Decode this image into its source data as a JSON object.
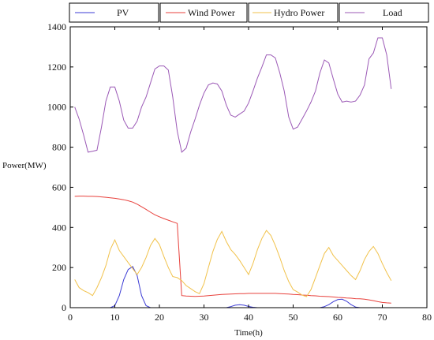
{
  "chart_data": {
    "type": "line",
    "xlabel": "Time(h)",
    "ylabel": "Power(MW)",
    "xlim": [
      0,
      80
    ],
    "ylim": [
      0,
      1400
    ],
    "xticks": [
      0,
      10,
      20,
      30,
      40,
      50,
      60,
      70,
      80
    ],
    "yticks": [
      0,
      200,
      400,
      600,
      800,
      1000,
      1200,
      1400
    ],
    "grid": false,
    "legend_placement": "top, outside plot",
    "series": [
      {
        "name": "PV",
        "color": "#3b3bd4",
        "x": [
          1,
          2,
          3,
          4,
          5,
          6,
          7,
          8,
          9,
          10,
          11,
          12,
          13,
          14,
          15,
          16,
          17,
          18,
          19,
          20,
          21,
          22,
          23,
          24,
          25,
          26,
          27,
          28,
          29,
          30,
          31,
          32,
          33,
          34,
          35,
          36,
          37,
          38,
          39,
          40,
          41,
          42,
          43,
          44,
          45,
          46,
          47,
          48,
          49,
          50,
          51,
          52,
          53,
          54,
          55,
          56,
          57,
          58,
          59,
          60,
          61,
          62,
          63,
          64,
          65,
          66,
          67,
          68,
          69,
          70,
          71,
          72
        ],
        "values": [
          0,
          0,
          0,
          0,
          0,
          0,
          0,
          0,
          0,
          10,
          60,
          140,
          190,
          205,
          160,
          60,
          10,
          0,
          0,
          0,
          0,
          0,
          0,
          0,
          0,
          0,
          0,
          0,
          0,
          0,
          0,
          0,
          0,
          0,
          0,
          5,
          12,
          15,
          12,
          6,
          2,
          0,
          0,
          0,
          0,
          0,
          0,
          0,
          0,
          0,
          0,
          0,
          0,
          0,
          0,
          0,
          5,
          15,
          30,
          40,
          42,
          32,
          15,
          3,
          0,
          0,
          0,
          0,
          0,
          0,
          0,
          0
        ]
      },
      {
        "name": "Wind Power",
        "color": "#e8413c",
        "x": [
          1,
          2,
          3,
          4,
          5,
          6,
          7,
          8,
          9,
          10,
          11,
          12,
          13,
          14,
          15,
          16,
          17,
          18,
          19,
          20,
          21,
          22,
          23,
          24,
          25,
          26,
          27,
          28,
          29,
          30,
          31,
          32,
          33,
          34,
          35,
          36,
          37,
          38,
          39,
          40,
          41,
          42,
          43,
          44,
          45,
          46,
          47,
          48,
          49,
          50,
          51,
          52,
          53,
          54,
          55,
          56,
          57,
          58,
          59,
          60,
          61,
          62,
          63,
          64,
          65,
          66,
          67,
          68,
          69,
          70,
          71,
          72
        ],
        "values": [
          555,
          556,
          556,
          555,
          555,
          554,
          552,
          550,
          548,
          545,
          542,
          538,
          533,
          526,
          516,
          503,
          490,
          476,
          463,
          453,
          444,
          436,
          428,
          420,
          60,
          58,
          57,
          56,
          57,
          58,
          60,
          62,
          64,
          66,
          67,
          68,
          69,
          70,
          70,
          71,
          71,
          71,
          71,
          71,
          71,
          71,
          70,
          69,
          68,
          66,
          65,
          63,
          62,
          60,
          59,
          57,
          56,
          55,
          53,
          51,
          50,
          48,
          47,
          45,
          44,
          42,
          39,
          35,
          30,
          26,
          24,
          23
        ]
      },
      {
        "name": "Hydro Power",
        "color": "#f1c24b",
        "x": [
          1,
          2,
          3,
          4,
          5,
          6,
          7,
          8,
          9,
          10,
          11,
          12,
          13,
          14,
          15,
          16,
          17,
          18,
          19,
          20,
          21,
          22,
          23,
          24,
          25,
          26,
          27,
          28,
          29,
          30,
          31,
          32,
          33,
          34,
          35,
          36,
          37,
          38,
          39,
          40,
          41,
          42,
          43,
          44,
          45,
          46,
          47,
          48,
          49,
          50,
          51,
          52,
          53,
          54,
          55,
          56,
          57,
          58,
          59,
          60,
          61,
          62,
          63,
          64,
          65,
          66,
          67,
          68,
          69,
          70,
          71,
          72
        ],
        "values": [
          140,
          100,
          85,
          75,
          60,
          100,
          150,
          210,
          290,
          338,
          285,
          255,
          225,
          195,
          165,
          200,
          250,
          310,
          345,
          315,
          255,
          200,
          155,
          150,
          135,
          110,
          95,
          80,
          70,
          120,
          200,
          280,
          340,
          380,
          330,
          290,
          265,
          235,
          200,
          165,
          220,
          290,
          345,
          385,
          360,
          310,
          250,
          185,
          130,
          90,
          78,
          63,
          55,
          90,
          150,
          210,
          270,
          300,
          260,
          235,
          210,
          185,
          160,
          140,
          185,
          240,
          280,
          305,
          270,
          220,
          175,
          135
        ]
      },
      {
        "name": "Load",
        "color": "#9b59b6",
        "x": [
          1,
          2,
          3,
          4,
          5,
          6,
          7,
          8,
          9,
          10,
          11,
          12,
          13,
          14,
          15,
          16,
          17,
          18,
          19,
          20,
          21,
          22,
          23,
          24,
          25,
          26,
          27,
          28,
          29,
          30,
          31,
          32,
          33,
          34,
          35,
          36,
          37,
          38,
          39,
          40,
          41,
          42,
          43,
          44,
          45,
          46,
          47,
          48,
          49,
          50,
          51,
          52,
          53,
          54,
          55,
          56,
          57,
          58,
          59,
          60,
          61,
          62,
          63,
          64,
          65,
          66,
          67,
          68,
          69,
          70,
          71,
          72
        ],
        "values": [
          1000,
          940,
          860,
          775,
          780,
          785,
          900,
          1030,
          1100,
          1100,
          1030,
          935,
          895,
          895,
          930,
          1000,
          1050,
          1120,
          1190,
          1205,
          1205,
          1185,
          1050,
          880,
          775,
          795,
          875,
          940,
          1010,
          1070,
          1110,
          1120,
          1115,
          1080,
          1010,
          960,
          950,
          965,
          980,
          1020,
          1080,
          1145,
          1200,
          1260,
          1260,
          1245,
          1170,
          1080,
          950,
          890,
          900,
          940,
          980,
          1025,
          1080,
          1170,
          1235,
          1220,
          1140,
          1065,
          1025,
          1030,
          1025,
          1030,
          1060,
          1110,
          1240,
          1270,
          1345,
          1345,
          1260,
          1090
        ]
      }
    ]
  }
}
